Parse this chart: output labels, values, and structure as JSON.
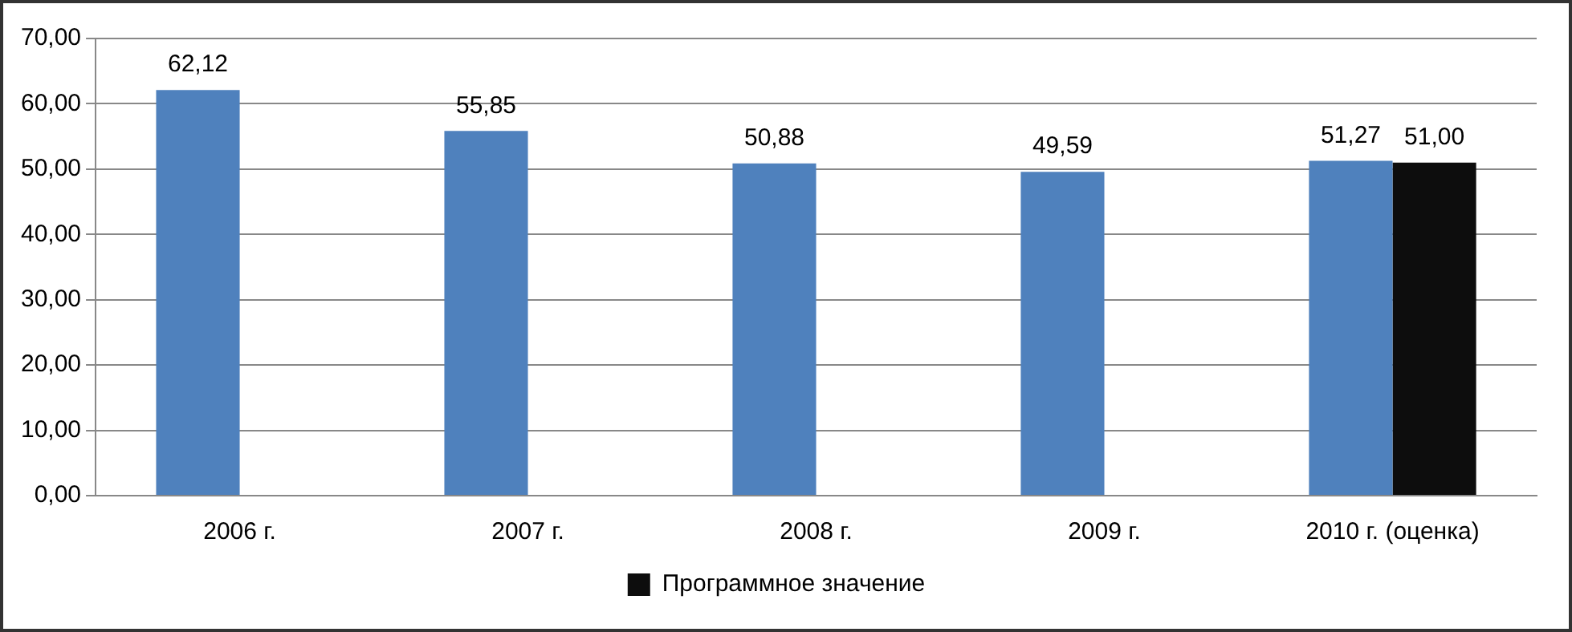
{
  "chart_data": {
    "type": "bar",
    "categories": [
      "2006 г.",
      "2007 г.",
      "2008 г.",
      "2009 г.",
      "2010 г. (оценка)"
    ],
    "series": [
      {
        "color": "#4f81bd",
        "values": [
          62.12,
          55.85,
          50.88,
          49.59,
          51.27
        ],
        "value_labels": [
          "62,12",
          "55,85",
          "50,88",
          "49,59",
          "51,27"
        ]
      },
      {
        "name": "Программное значение",
        "color": "#0d0d0d",
        "values": [
          null,
          null,
          null,
          null,
          51.0
        ],
        "value_labels": [
          null,
          null,
          null,
          null,
          "51,00"
        ]
      }
    ],
    "ylim": [
      0,
      70
    ],
    "yticks": [
      {
        "value": 0,
        "label": "0,00"
      },
      {
        "value": 10,
        "label": "10,00"
      },
      {
        "value": 20,
        "label": "20,00"
      },
      {
        "value": 30,
        "label": "30,00"
      },
      {
        "value": 40,
        "label": "40,00"
      },
      {
        "value": 50,
        "label": "50,00"
      },
      {
        "value": 60,
        "label": "60,00"
      },
      {
        "value": 70,
        "label": "70,00"
      }
    ],
    "grid": "y",
    "legend": "bottom"
  }
}
